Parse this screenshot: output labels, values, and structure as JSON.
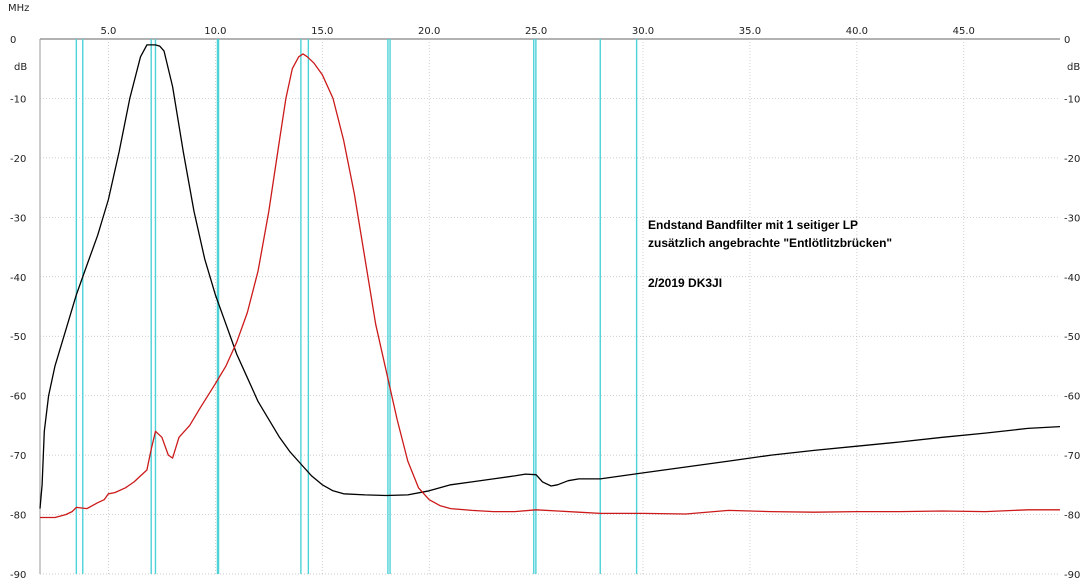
{
  "chart_data": {
    "type": "line",
    "x_unit": "MHz",
    "y_unit_left": "dB",
    "y_unit_right": "dB",
    "xlim": [
      1.8,
      49.5
    ],
    "ylim": [
      -90,
      0
    ],
    "x_ticks": [
      5.0,
      10.0,
      15.0,
      20.0,
      25.0,
      30.0,
      35.0,
      40.0,
      45.0
    ],
    "x_tick_labels": [
      "5.0",
      "10.0",
      "15.0",
      "20.0",
      "25.0",
      "30.0",
      "35.0",
      "40.0",
      "45.0"
    ],
    "y_ticks": [
      0,
      -10,
      -20,
      -30,
      -40,
      -50,
      -60,
      -70,
      -80,
      -90
    ],
    "y_tick_labels": [
      "0",
      "-10",
      "-20",
      "-30",
      "-40",
      "-50",
      "-60",
      "-70",
      "-80",
      "-90"
    ],
    "grid": "dotted",
    "band_markers_mhz": [
      3.5,
      3.8,
      7.0,
      7.2,
      10.1,
      10.15,
      14.0,
      14.35,
      18.07,
      18.17,
      24.89,
      24.99,
      28.0,
      29.7
    ],
    "marker_color": "#4dd2d8",
    "annotation_lines": [
      "Endstand Bandfilter mit 1 seitiger LP",
      "zusätzlich angebrachte \"Entlötlitzbrücken\"",
      "2/2019  DK3JI"
    ],
    "series": [
      {
        "color": "#000000",
        "x": [
          1.8,
          1.9,
          2.0,
          2.2,
          2.5,
          3.0,
          3.5,
          4.0,
          4.5,
          5.0,
          5.5,
          6.0,
          6.5,
          6.8,
          7.0,
          7.2,
          7.4,
          7.6,
          8.0,
          8.5,
          9.0,
          9.5,
          10.0,
          10.5,
          11.0,
          11.5,
          12.0,
          12.5,
          13.0,
          13.5,
          14.0,
          14.5,
          15.0,
          15.5,
          16.0,
          17.0,
          18.0,
          19.0,
          20.0,
          21.0,
          22.0,
          23.0,
          24.0,
          24.5,
          25.0,
          25.3,
          25.7,
          26.0,
          26.5,
          27.0,
          28.0,
          29.0,
          30.0,
          32.0,
          34.0,
          36.0,
          38.0,
          40.0,
          42.0,
          44.0,
          46.0,
          48.0,
          49.5
        ],
        "y": [
          -79,
          -75,
          -66,
          -60,
          -55,
          -49,
          -43,
          -38,
          -33,
          -27,
          -19,
          -10,
          -3,
          -1,
          -1,
          -1,
          -1.2,
          -2,
          -8,
          -19,
          -29,
          -37,
          -43,
          -48,
          -53,
          -57,
          -61,
          -64,
          -67,
          -69.5,
          -71.5,
          -73.5,
          -75,
          -76,
          -76.5,
          -76.7,
          -76.8,
          -76.7,
          -76,
          -75,
          -74.5,
          -74,
          -73.5,
          -73.2,
          -73.3,
          -74.5,
          -75.2,
          -75,
          -74.3,
          -74,
          -74,
          -73.5,
          -73,
          -72,
          -71,
          -70,
          -69.2,
          -68.5,
          -67.8,
          -67,
          -66.3,
          -65.5,
          -65.2
        ]
      },
      {
        "color": "#cc1a1a",
        "x": [
          1.8,
          2.5,
          3.0,
          3.3,
          3.5,
          4.0,
          4.5,
          4.8,
          5.0,
          5.3,
          5.8,
          6.2,
          6.5,
          6.8,
          7.0,
          7.2,
          7.5,
          7.8,
          8.0,
          8.3,
          8.8,
          9.3,
          10.0,
          10.5,
          11.0,
          11.5,
          12.0,
          12.5,
          13.0,
          13.3,
          13.6,
          13.9,
          14.1,
          14.3,
          14.6,
          15.0,
          15.5,
          16.0,
          16.5,
          17.0,
          17.5,
          18.0,
          18.5,
          19.0,
          19.5,
          20.0,
          20.5,
          21.0,
          22.0,
          23.0,
          24.0,
          25.0,
          26.0,
          27.0,
          28.0,
          30.0,
          32.0,
          34.0,
          36.0,
          38.0,
          40.0,
          42.0,
          44.0,
          46.0,
          48.0,
          49.5
        ],
        "y": [
          -80.5,
          -80.5,
          -80,
          -79.5,
          -78.8,
          -79,
          -78,
          -77.5,
          -76.5,
          -76.3,
          -75.5,
          -74.5,
          -73.5,
          -72.5,
          -69,
          -66,
          -67,
          -70,
          -70.5,
          -67,
          -65,
          -62,
          -58,
          -55,
          -51,
          -46,
          -39,
          -29,
          -17,
          -10,
          -5,
          -3,
          -2.5,
          -3,
          -4,
          -6,
          -10,
          -17,
          -26,
          -37,
          -48,
          -56,
          -64,
          -71,
          -75.5,
          -77.5,
          -78.5,
          -79,
          -79.3,
          -79.5,
          -79.5,
          -79.2,
          -79.4,
          -79.6,
          -79.8,
          -79.8,
          -79.9,
          -79.3,
          -79.5,
          -79.6,
          -79.5,
          -79.5,
          -79.4,
          -79.5,
          -79.2,
          -79.2
        ]
      }
    ]
  }
}
